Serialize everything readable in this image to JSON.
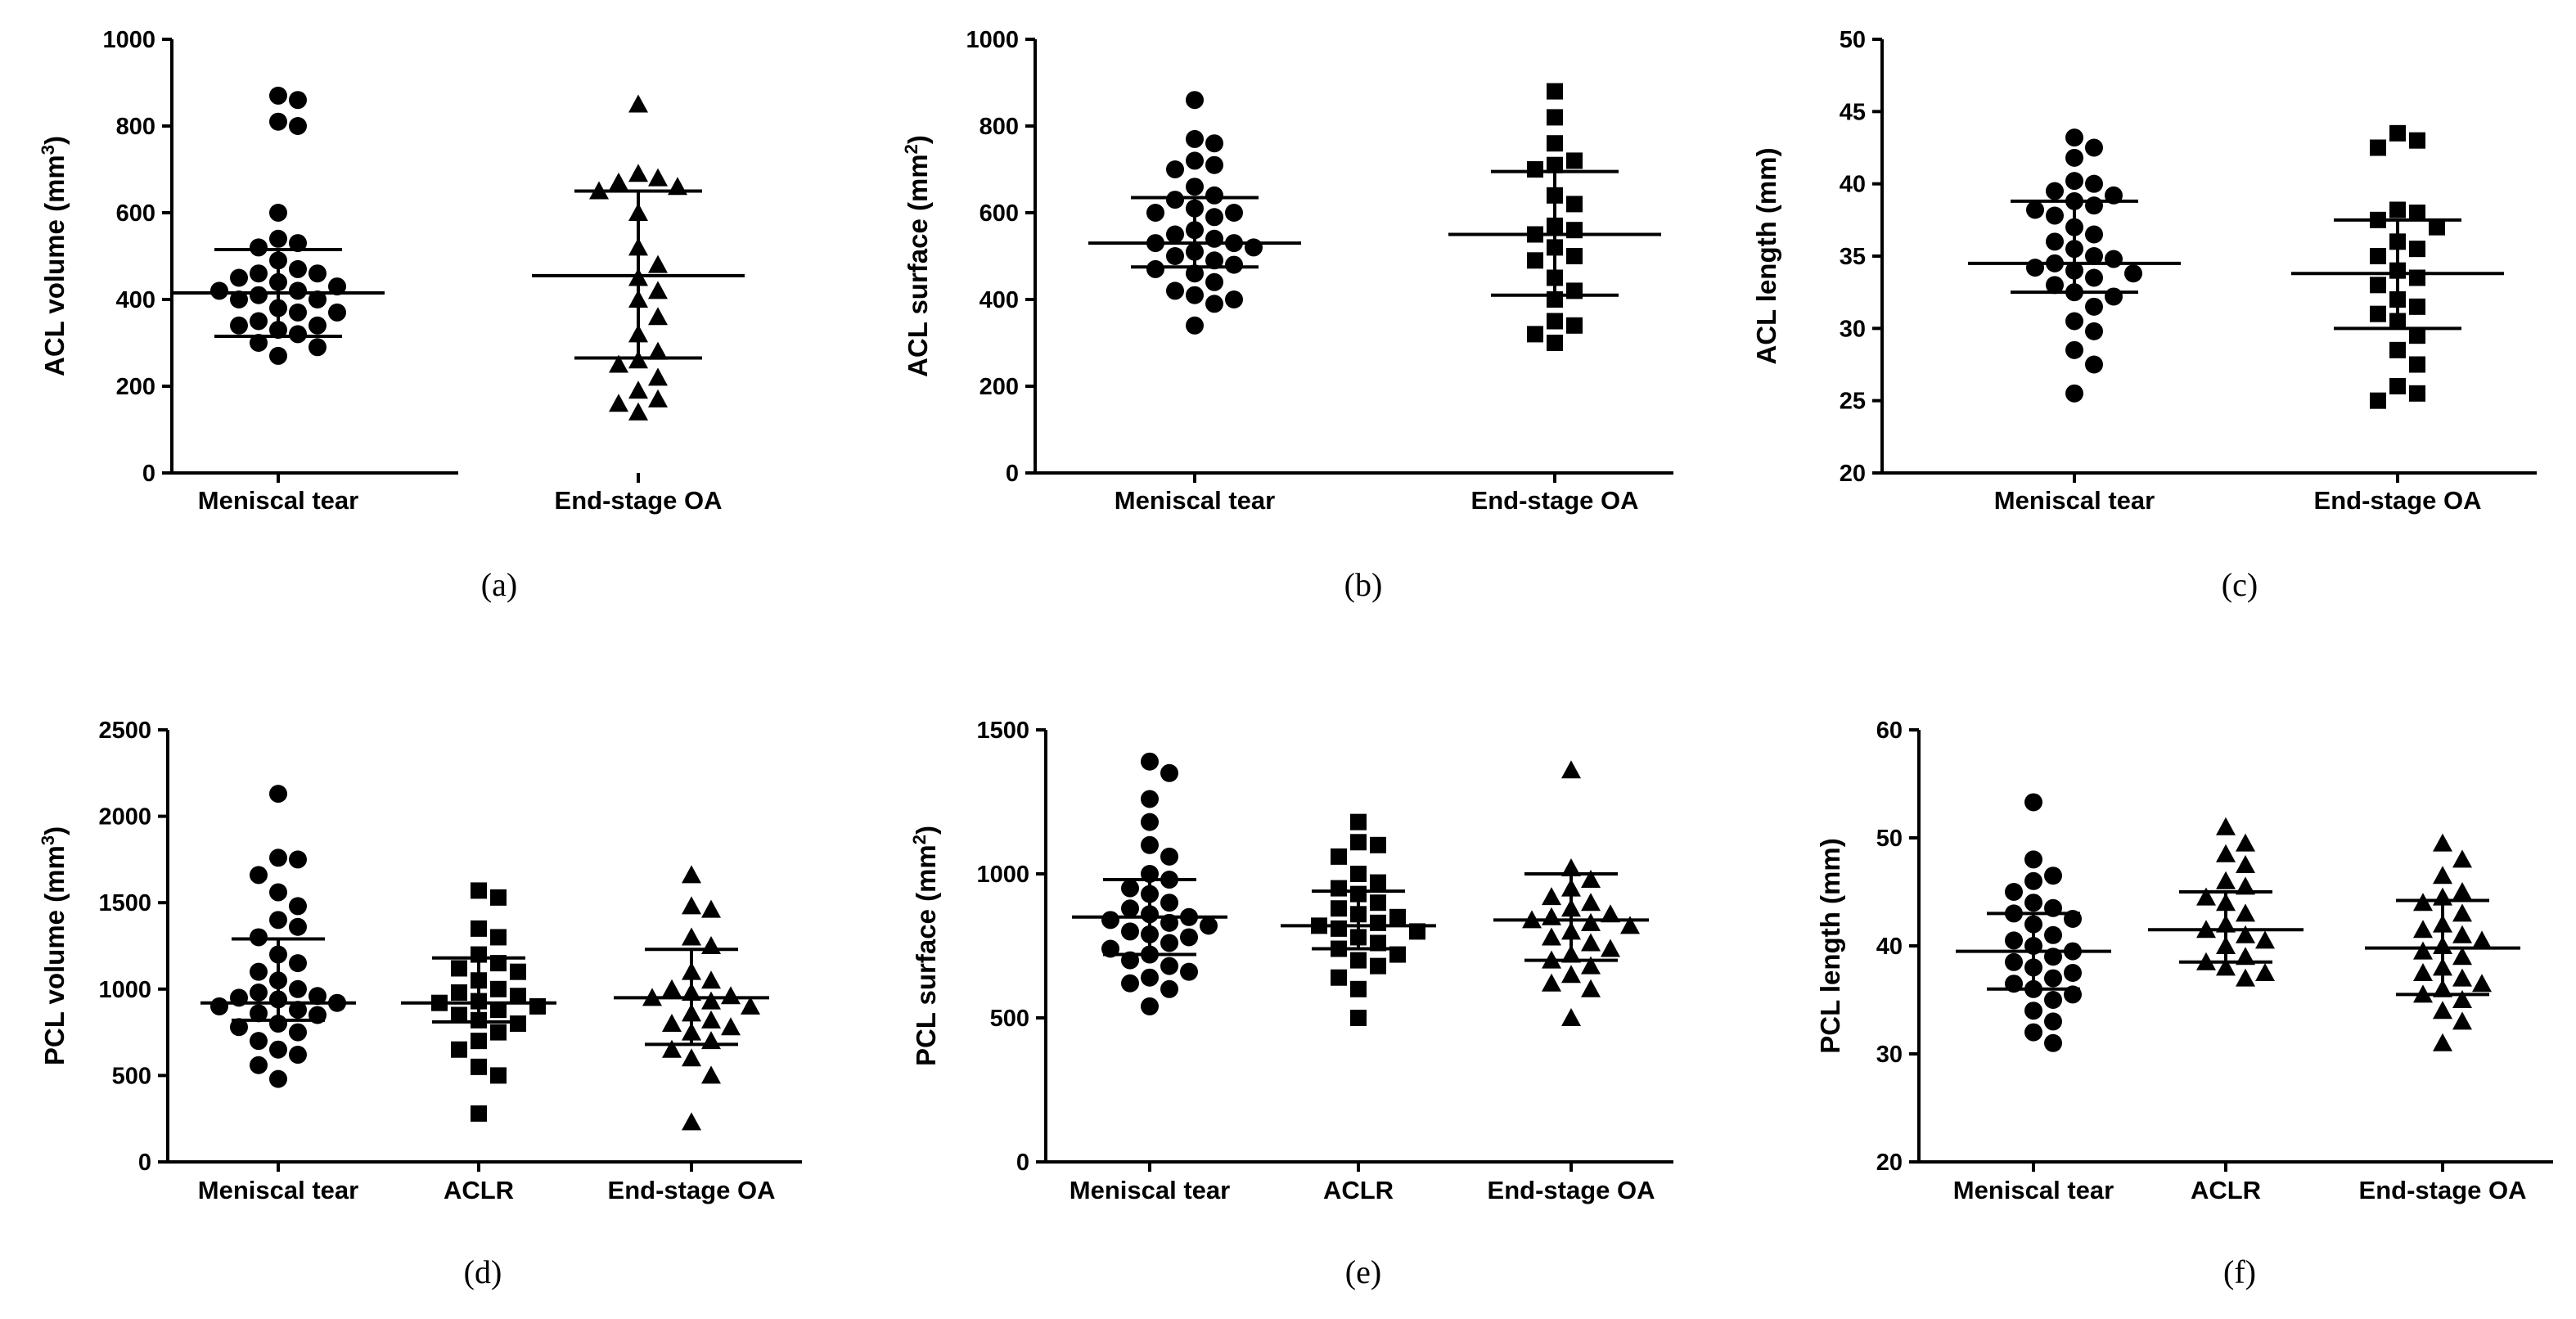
{
  "figure": {
    "colors": {
      "marker": "#000000",
      "axis": "#000000",
      "background": "#ffffff"
    },
    "panels": [
      {
        "label": "(a)",
        "ylabel": "ACL volume (mm",
        "ylabel_sup": "3",
        "ylabel_end": ")"
      },
      {
        "label": "(b)",
        "ylabel": "ACL surface (mm",
        "ylabel_sup": "2",
        "ylabel_end": ")"
      },
      {
        "label": "(c)",
        "ylabel": "ACL length (mm)",
        "ylabel_sup": "",
        "ylabel_end": ""
      },
      {
        "label": "(d)",
        "ylabel": "PCL volume (mm",
        "ylabel_sup": "3",
        "ylabel_end": ")"
      },
      {
        "label": "(e)",
        "ylabel": "PCL surface (mm",
        "ylabel_sup": "2",
        "ylabel_end": ")"
      },
      {
        "label": "(f)",
        "ylabel": "PCL length (mm)",
        "ylabel_sup": "",
        "ylabel_end": ""
      }
    ]
  },
  "chart_data": [
    {
      "type": "scatter",
      "panel": "(a)",
      "title": "",
      "xlabel": "",
      "ylabel": "ACL volume (mm3)",
      "ylim": [
        0,
        1000
      ],
      "yticks": [
        "0",
        "200",
        "400",
        "600",
        "800",
        "1000"
      ],
      "categories": [
        "Meniscal tear",
        "End-stage OA"
      ],
      "grid": false,
      "series": [
        {
          "name": "Meniscal tear",
          "marker": "circle",
          "mean": 415,
          "sd_upper": 515,
          "sd_lower": 315,
          "values": [
            870,
            860,
            810,
            800,
            600,
            540,
            530,
            520,
            490,
            470,
            460,
            460,
            450,
            440,
            430,
            420,
            420,
            410,
            400,
            400,
            380,
            370,
            370,
            350,
            340,
            340,
            330,
            320,
            300,
            290,
            270
          ]
        },
        {
          "name": "End-stage OA",
          "marker": "triangle",
          "mean": 455,
          "sd_upper": 650,
          "sd_lower": 265,
          "values": [
            850,
            690,
            680,
            670,
            660,
            650,
            600,
            520,
            480,
            450,
            420,
            400,
            360,
            320,
            280,
            260,
            250,
            220,
            190,
            170,
            160,
            140
          ]
        }
      ]
    },
    {
      "type": "scatter",
      "panel": "(b)",
      "title": "",
      "xlabel": "",
      "ylabel": "ACL surface (mm2)",
      "ylim": [
        0,
        1000
      ],
      "yticks": [
        "0",
        "200",
        "400",
        "600",
        "800",
        "1000"
      ],
      "categories": [
        "Meniscal tear",
        "End-stage OA"
      ],
      "grid": false,
      "series": [
        {
          "name": "Meniscal tear",
          "marker": "circle",
          "mean": 530,
          "sd_upper": 635,
          "sd_lower": 475,
          "values": [
            860,
            770,
            760,
            720,
            710,
            700,
            660,
            640,
            630,
            610,
            600,
            600,
            590,
            560,
            550,
            540,
            530,
            530,
            520,
            510,
            500,
            490,
            480,
            470,
            460,
            440,
            420,
            410,
            400,
            390,
            340
          ]
        },
        {
          "name": "End-stage OA",
          "marker": "square",
          "mean": 550,
          "sd_upper": 695,
          "sd_lower": 410,
          "values": [
            880,
            820,
            760,
            720,
            710,
            700,
            640,
            620,
            570,
            560,
            550,
            520,
            500,
            490,
            450,
            420,
            400,
            350,
            340,
            320,
            300
          ]
        }
      ]
    },
    {
      "type": "scatter",
      "panel": "(c)",
      "title": "",
      "xlabel": "",
      "ylabel": "ACL length (mm)",
      "ylim": [
        20,
        50
      ],
      "yticks": [
        "20",
        "25",
        "30",
        "35",
        "40",
        "45",
        "50"
      ],
      "categories": [
        "Meniscal tear",
        "End-stage OA"
      ],
      "grid": false,
      "series": [
        {
          "name": "Meniscal tear",
          "marker": "circle",
          "mean": 34.5,
          "sd_upper": 38.8,
          "sd_lower": 32.5,
          "values": [
            43.2,
            42.5,
            41.8,
            40.2,
            40.0,
            39.5,
            39.2,
            38.8,
            38.5,
            38.2,
            37.8,
            37.0,
            36.5,
            36.0,
            35.5,
            35.0,
            34.8,
            34.5,
            34.2,
            34.0,
            33.8,
            33.5,
            33.0,
            32.5,
            32.2,
            31.5,
            30.5,
            29.8,
            28.5,
            27.5,
            25.5
          ]
        },
        {
          "name": "End-stage OA",
          "marker": "square",
          "mean": 33.8,
          "sd_upper": 37.5,
          "sd_lower": 30.0,
          "values": [
            43.5,
            43.0,
            42.5,
            38.2,
            38.0,
            37.5,
            37.0,
            36.0,
            35.5,
            35.0,
            34.0,
            33.5,
            33.0,
            32.0,
            31.5,
            31.0,
            30.5,
            29.5,
            28.5,
            27.5,
            26.0,
            25.5,
            25.0
          ]
        }
      ]
    },
    {
      "type": "scatter",
      "panel": "(d)",
      "title": "",
      "xlabel": "",
      "ylabel": "PCL volume (mm3)",
      "ylim": [
        0,
        2500
      ],
      "yticks": [
        "0",
        "500",
        "1000",
        "1500",
        "2000",
        "2500"
      ],
      "categories": [
        "Meniscal tear",
        "ACLR",
        "End-stage OA"
      ],
      "grid": false,
      "series": [
        {
          "name": "Meniscal tear",
          "marker": "circle",
          "mean": 920,
          "sd_upper": 1290,
          "sd_lower": 820,
          "values": [
            2130,
            1760,
            1750,
            1660,
            1560,
            1480,
            1400,
            1360,
            1300,
            1200,
            1150,
            1100,
            1050,
            1000,
            980,
            960,
            950,
            940,
            920,
            900,
            880,
            860,
            850,
            800,
            780,
            750,
            700,
            650,
            620,
            560,
            480
          ]
        },
        {
          "name": "ACLR",
          "marker": "square",
          "mean": 920,
          "sd_upper": 1180,
          "sd_lower": 810,
          "values": [
            1570,
            1530,
            1350,
            1300,
            1200,
            1150,
            1120,
            1100,
            1050,
            1000,
            980,
            960,
            930,
            920,
            900,
            880,
            850,
            820,
            800,
            750,
            700,
            650,
            550,
            500,
            280
          ]
        },
        {
          "name": "End-stage OA",
          "marker": "triangle",
          "mean": 950,
          "sd_upper": 1230,
          "sd_lower": 680,
          "values": [
            1660,
            1480,
            1460,
            1300,
            1250,
            1100,
            1050,
            1000,
            980,
            960,
            950,
            930,
            900,
            860,
            820,
            800,
            780,
            750,
            700,
            650,
            600,
            500,
            230
          ]
        }
      ]
    },
    {
      "type": "scatter",
      "panel": "(e)",
      "title": "",
      "xlabel": "",
      "ylabel": "PCL surface (mm2)",
      "ylim": [
        0,
        1500
      ],
      "yticks": [
        "0",
        "500",
        "1000",
        "1500"
      ],
      "categories": [
        "Meniscal tear",
        "ACLR",
        "End-stage OA"
      ],
      "grid": false,
      "series": [
        {
          "name": "Meniscal tear",
          "marker": "circle",
          "mean": 850,
          "sd_upper": 980,
          "sd_lower": 720,
          "values": [
            1390,
            1350,
            1260,
            1180,
            1100,
            1060,
            1000,
            980,
            950,
            930,
            900,
            880,
            860,
            850,
            840,
            830,
            820,
            800,
            790,
            780,
            760,
            740,
            720,
            700,
            680,
            660,
            640,
            620,
            600,
            540
          ]
        },
        {
          "name": "ACLR",
          "marker": "square",
          "mean": 820,
          "sd_upper": 940,
          "sd_lower": 740,
          "values": [
            1180,
            1110,
            1100,
            1060,
            1000,
            970,
            950,
            930,
            900,
            880,
            860,
            850,
            830,
            820,
            810,
            800,
            780,
            760,
            740,
            720,
            700,
            680,
            640,
            600,
            500
          ]
        },
        {
          "name": "End-stage OA",
          "marker": "triangle",
          "mean": 840,
          "sd_upper": 1000,
          "sd_lower": 700,
          "values": [
            1360,
            1020,
            980,
            950,
            920,
            900,
            880,
            860,
            850,
            840,
            830,
            820,
            800,
            780,
            760,
            740,
            720,
            700,
            680,
            650,
            620,
            600,
            500
          ]
        }
      ]
    },
    {
      "type": "scatter",
      "panel": "(f)",
      "title": "",
      "xlabel": "",
      "ylabel": "PCL length (mm)",
      "ylim": [
        20,
        60
      ],
      "yticks": [
        "20",
        "30",
        "40",
        "50",
        "60"
      ],
      "categories": [
        "Meniscal tear",
        "ACLR",
        "End-stage OA"
      ],
      "grid": false,
      "series": [
        {
          "name": "Meniscal tear",
          "marker": "circle",
          "mean": 39.5,
          "sd_upper": 43.0,
          "sd_lower": 36.0,
          "values": [
            53.3,
            48.0,
            46.5,
            46.0,
            45.0,
            44.0,
            43.5,
            43.0,
            42.5,
            42.0,
            41.0,
            40.5,
            40.0,
            39.5,
            39.0,
            38.5,
            38.0,
            37.5,
            37.0,
            36.5,
            36.0,
            35.5,
            35.0,
            34.0,
            33.0,
            32.0,
            31.0
          ]
        },
        {
          "name": "ACLR",
          "marker": "triangle",
          "mean": 41.5,
          "sd_upper": 45.0,
          "sd_lower": 38.5,
          "values": [
            51.0,
            49.5,
            48.5,
            47.5,
            46.0,
            45.5,
            44.5,
            44.0,
            43.0,
            42.0,
            41.5,
            41.0,
            40.5,
            40.0,
            39.0,
            38.5,
            38.0,
            37.5,
            37.0
          ]
        },
        {
          "name": "End-stage OA",
          "marker": "triangle",
          "mean": 39.8,
          "sd_upper": 44.2,
          "sd_lower": 35.5,
          "values": [
            49.5,
            48.0,
            46.5,
            45.0,
            44.5,
            44.0,
            43.0,
            42.0,
            41.5,
            41.0,
            40.5,
            40.0,
            39.5,
            39.0,
            38.0,
            37.5,
            37.0,
            36.5,
            36.0,
            35.5,
            35.0,
            34.0,
            33.0,
            31.0
          ]
        }
      ]
    }
  ]
}
